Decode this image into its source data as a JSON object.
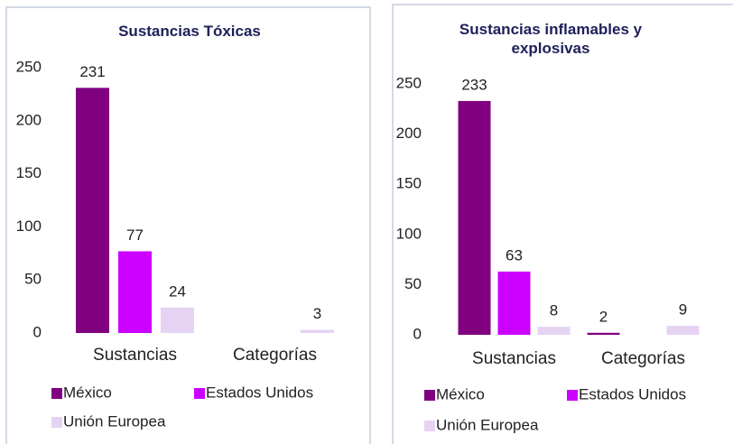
{
  "chart_data": [
    {
      "type": "bar",
      "title": "Sustancias Tóxicas",
      "categories": [
        "Sustancias",
        "Categorías"
      ],
      "series": [
        {
          "name": "México",
          "color": "#800080",
          "values": [
            231,
            null
          ]
        },
        {
          "name": "Estados Unidos",
          "color": "#cc00ff",
          "values": [
            77,
            null
          ]
        },
        {
          "name": "Unión Europea",
          "color": "#e6d3f4",
          "values": [
            24,
            3
          ]
        }
      ],
      "ylim": [
        0,
        250
      ],
      "yticks": [
        0,
        50,
        100,
        150,
        200,
        250
      ],
      "legend": "bottom"
    },
    {
      "type": "bar",
      "title": "Sustancias inflamables y explosivas",
      "categories": [
        "Sustancias",
        "Categorías"
      ],
      "series": [
        {
          "name": "México",
          "color": "#800080",
          "values": [
            233,
            2
          ]
        },
        {
          "name": "Estados Unidos",
          "color": "#cc00ff",
          "values": [
            63,
            null
          ]
        },
        {
          "name": "Unión Europea",
          "color": "#e6d3f4",
          "values": [
            8,
            9
          ]
        }
      ],
      "ylim": [
        0,
        250
      ],
      "yticks": [
        0,
        50,
        100,
        150,
        200,
        250
      ],
      "legend": "bottom"
    }
  ]
}
